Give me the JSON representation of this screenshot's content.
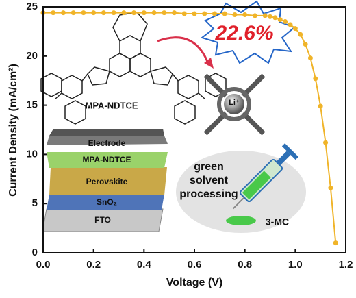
{
  "chart_data": {
    "type": "line",
    "xlabel": "Voltage (V)",
    "ylabel": "Current Density (mA/cm²)",
    "color": "#f0b429",
    "xlim": [
      0,
      1.2
    ],
    "ylim": [
      0,
      25
    ],
    "xticks": [
      {
        "value": 0,
        "label": "0.0"
      },
      0.2,
      0.4,
      0.6,
      0.8,
      {
        "value": 1,
        "label": "1.0"
      },
      1.2
    ],
    "yticks": [
      0,
      5,
      10,
      15,
      20,
      25
    ],
    "x": [
      0,
      0.04,
      0.08,
      0.12,
      0.16,
      0.2,
      0.24,
      0.28,
      0.32,
      0.36,
      0.4,
      0.44,
      0.48,
      0.52,
      0.56,
      0.6,
      0.64,
      0.68,
      0.72,
      0.76,
      0.8,
      0.84,
      0.88,
      0.9,
      0.92,
      0.94,
      0.96,
      0.98,
      1,
      1.02,
      1.04,
      1.06,
      1.08,
      1.1,
      1.12,
      1.14,
      1.16
    ],
    "values": [
      24.4,
      24.4,
      24.4,
      24.4,
      24.4,
      24.4,
      24.4,
      24.4,
      24.4,
      24.4,
      24.4,
      24.4,
      24.4,
      24.4,
      24.3,
      24.3,
      24.3,
      24.3,
      24.3,
      24.2,
      24.2,
      24.1,
      24.1,
      24.0,
      23.9,
      23.7,
      23.5,
      23.2,
      22.8,
      22.2,
      21.2,
      19.8,
      17.7,
      14.9,
      11.2,
      6.6,
      1.0
    ],
    "annotations": {
      "efficiency": "22.6%",
      "molecule": "MPA-NDTCE",
      "ion": "Li⁺",
      "layers": [
        "Electrode",
        "MPA-NDTCE",
        "Perovskite",
        "SnO₂",
        "FTO"
      ],
      "solvent_note": [
        "green",
        "solvent",
        "processing"
      ],
      "solvent": "3-MC"
    }
  }
}
